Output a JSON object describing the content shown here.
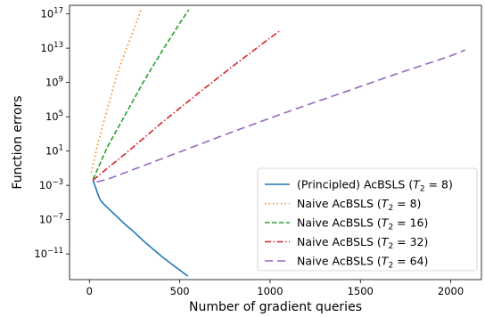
{
  "chart_data": {
    "type": "line",
    "title": "",
    "xlabel": "Number of gradient queries",
    "ylabel": "Function errors",
    "xscale": "linear",
    "yscale": "log",
    "xlim": [
      -110,
      2170
    ],
    "ylim_log10": [
      -14,
      18
    ],
    "xticks": [
      0,
      500,
      1000,
      1500,
      2000
    ],
    "xtick_labels": [
      "0",
      "500",
      "1000",
      "1500",
      "2000"
    ],
    "yticks_log10": [
      -11,
      -7,
      -3,
      1,
      5,
      9,
      13,
      17
    ],
    "ytick_base": "10",
    "ytick_exponents": [
      "−11",
      "−7",
      "−3",
      "1",
      "5",
      "9",
      "13",
      "17"
    ],
    "grid": false,
    "legend_position": "lower right",
    "series": [
      {
        "name": "(Principled) AcBSLS (T₂ = 8)",
        "legend_main": "(Principled) AcBSLS (",
        "color": "#1f77b4",
        "dash": "solid",
        "x": [
          20,
          30,
          40,
          50,
          60,
          80,
          100,
          150,
          200,
          250,
          300,
          350,
          400,
          450,
          500,
          545
        ],
        "y_log10": [
          -2.4,
          -3.0,
          -3.6,
          -4.2,
          -4.7,
          -5.2,
          -5.6,
          -6.6,
          -7.6,
          -8.5,
          -9.5,
          -10.4,
          -11.3,
          -12.1,
          -12.9,
          -13.6
        ]
      },
      {
        "name": "Naive AcBSLS (T₂ = 8)",
        "legend_main": "Naive AcBSLS (",
        "color": "#ff7f0e",
        "dash": "dotted",
        "x": [
          10,
          50,
          100,
          150,
          200,
          250,
          285
        ],
        "y_log10": [
          -1.5,
          2.1,
          6.0,
          9.7,
          12.7,
          15.4,
          17.5
        ]
      },
      {
        "name": "Naive AcBSLS (T₂ = 16)",
        "legend_main": "Naive AcBSLS (",
        "color": "#2ca02c",
        "dash": "dashed",
        "x": [
          20,
          100,
          200,
          300,
          400,
          500,
          550
        ],
        "y_log10": [
          -2.3,
          1.5,
          5.3,
          9.1,
          12.6,
          15.9,
          17.5
        ]
      },
      {
        "name": "Naive AcBSLS (T₂ = 32)",
        "legend_main": "Naive AcBSLS (",
        "color": "#d62728",
        "dash": "dashdot",
        "x": [
          20,
          100,
          200,
          400,
          600,
          800,
          1000,
          1060
        ],
        "y_log10": [
          -2.4,
          -1.0,
          0.7,
          4.3,
          7.7,
          11.0,
          14.2,
          15.1
        ]
      },
      {
        "name": "Naive AcBSLS (T₂ = 64)",
        "legend_main": "Naive AcBSLS (",
        "color": "#9467bd",
        "dash": "longdash",
        "x": [
          40,
          100,
          200,
          500,
          800,
          1100,
          1400,
          1700,
          2000,
          2080
        ],
        "y_log10": [
          -2.6,
          -2.3,
          -1.5,
          0.9,
          3.3,
          5.6,
          7.8,
          10.0,
          12.1,
          12.8
        ]
      }
    ],
    "legend_sub": "2",
    "legend_values": [
      "8",
      "8",
      "16",
      "32",
      "64"
    ]
  }
}
